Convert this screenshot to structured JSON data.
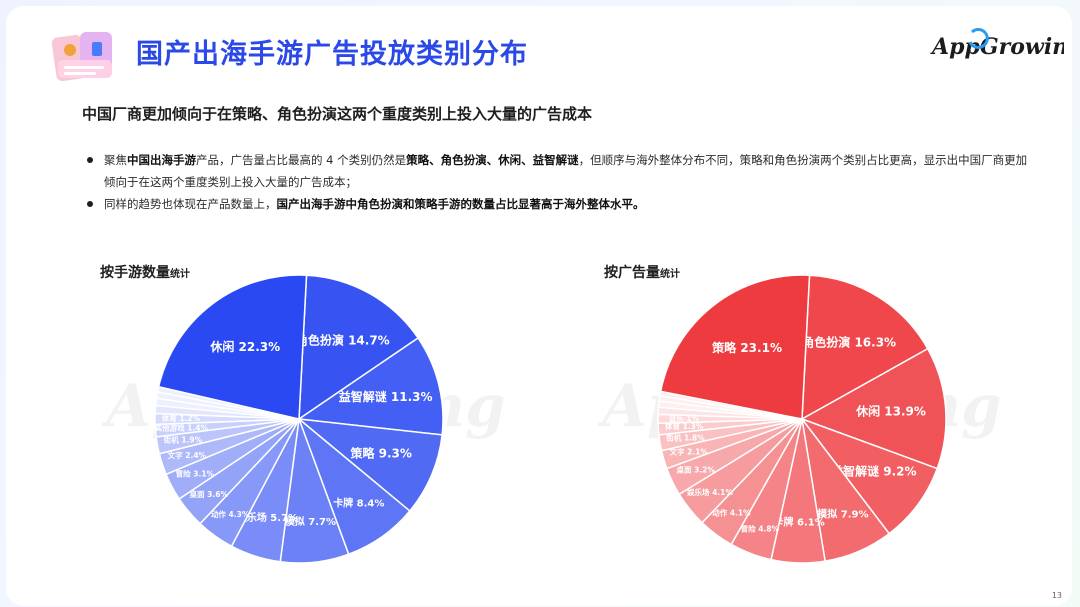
{
  "header": {
    "title": "国产出海手游广告投放类别分布",
    "brand": "AppGrowing"
  },
  "subtitle": "中国厂商更加倾向于在策略、角色扮演这两个重度类别上投入大量的广告成本",
  "bullets": [
    {
      "segments": [
        {
          "text": "聚焦",
          "bold": false
        },
        {
          "text": "中国出海手游",
          "bold": true
        },
        {
          "text": "产品，广告量占比最高的 4 个类别仍然是",
          "bold": false
        },
        {
          "text": "策略、角色扮演、休闲、益智解谜",
          "bold": true
        },
        {
          "text": "，但顺序与海外整体分布不同，策略和角色扮演两个类别占比更高，显示出中国厂商更加倾向于在这两个重度类别上投入大量的广告成本；",
          "bold": false
        }
      ]
    },
    {
      "segments": [
        {
          "text": "同样的趋势也体现在产品数量上，",
          "bold": false
        },
        {
          "text": "国产出海手游中角色扮演和策略手游的数量占比显著高于海外整体水平。",
          "bold": true
        }
      ]
    }
  ],
  "watermark": "AppGrowing",
  "page_number": "13",
  "chart_data": [
    {
      "type": "pie",
      "title": "按手游数量",
      "title_suffix": "统计",
      "base_color": "#2a49f2",
      "unit": "%",
      "slices": [
        {
          "label": "角色扮演",
          "value": 14.7
        },
        {
          "label": "益智解谜",
          "value": 11.3
        },
        {
          "label": "策略",
          "value": 9.3
        },
        {
          "label": "卡牌",
          "value": 8.4
        },
        {
          "label": "模拟",
          "value": 7.7
        },
        {
          "label": "娱乐场",
          "value": 5.7
        },
        {
          "label": "动作",
          "value": 4.3
        },
        {
          "label": "桌面",
          "value": 3.6
        },
        {
          "label": "冒险",
          "value": 3.1
        },
        {
          "label": "文字",
          "value": 2.4
        },
        {
          "label": "街机",
          "value": 1.9
        },
        {
          "label": "其他游戏",
          "value": 1.4
        },
        {
          "label": "体育",
          "value": 1.2
        },
        {
          "label": "",
          "value": 0.9
        },
        {
          "label": "",
          "value": 0.8
        },
        {
          "label": "",
          "value": 0.7
        },
        {
          "label": "",
          "value": 0.6
        },
        {
          "label": "休闲",
          "value": 22.3
        }
      ]
    },
    {
      "type": "pie",
      "title": "按广告量",
      "title_suffix": "统计",
      "base_color": "#ee3b40",
      "unit": "%",
      "slices": [
        {
          "label": "角色扮演",
          "value": 16.3
        },
        {
          "label": "休闲",
          "value": 13.9
        },
        {
          "label": "益智解谜",
          "value": 9.2
        },
        {
          "label": "模拟",
          "value": 7.9
        },
        {
          "label": "卡牌",
          "value": 6.1
        },
        {
          "label": "冒险",
          "value": 4.8
        },
        {
          "label": "动作",
          "value": 4.1
        },
        {
          "label": "娱乐场",
          "value": 4.1
        },
        {
          "label": "桌面",
          "value": 3.2
        },
        {
          "label": "文字",
          "value": 2.1
        },
        {
          "label": "街机",
          "value": 1.8
        },
        {
          "label": "体育",
          "value": 1.3
        },
        {
          "label": "音乐",
          "value": 1.0
        },
        {
          "label": "",
          "value": 0.8
        },
        {
          "label": "",
          "value": 0.7
        },
        {
          "label": "",
          "value": 0.6
        },
        {
          "label": "",
          "value": 0.5
        },
        {
          "label": "策略",
          "value": 23.1
        }
      ]
    }
  ]
}
